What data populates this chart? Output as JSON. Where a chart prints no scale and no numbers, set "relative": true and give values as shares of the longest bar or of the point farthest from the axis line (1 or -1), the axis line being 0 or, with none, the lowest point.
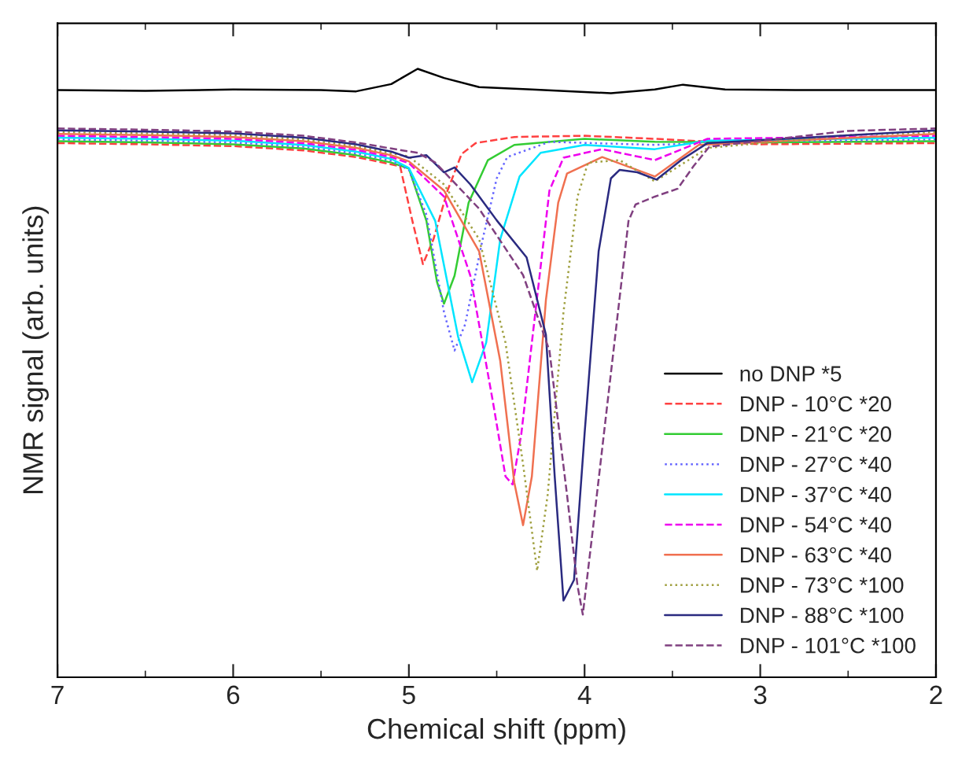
{
  "chart_data": {
    "type": "line",
    "relative": true,
    "xlabel": "Chemical shift (ppm)",
    "ylabel": "NMR signal (arb. units)",
    "xlim": [
      7,
      2
    ],
    "xticks": [
      7,
      6,
      5,
      4,
      3,
      2
    ],
    "grid": false,
    "legend": "bottom right",
    "marker": "none",
    "series": [
      {
        "name": "no DNP *5",
        "color": "#000000",
        "line_style": "solid",
        "x": [
          7,
          6.5,
          6,
          5.5,
          5.3,
          5.1,
          4.95,
          4.8,
          4.6,
          4.3,
          4.0,
          3.85,
          3.6,
          3.44,
          3.2,
          2.8,
          2.4,
          2
        ],
        "values": [
          0.965,
          0.964,
          0.966,
          0.965,
          0.963,
          0.975,
          1.0,
          0.985,
          0.97,
          0.966,
          0.962,
          0.96,
          0.966,
          0.974,
          0.966,
          0.965,
          0.965,
          0.965
        ]
      },
      {
        "name": "DNP - 10°C *20",
        "color": "#ff4040",
        "line_style": "dashed",
        "x": [
          7,
          6.5,
          6,
          5.6,
          5.3,
          5.1,
          5.05,
          4.98,
          4.92,
          4.86,
          4.78,
          4.7,
          4.62,
          4.4,
          4.0,
          3.6,
          3.0,
          2.5,
          2
        ],
        "values": [
          0.878,
          0.876,
          0.873,
          0.866,
          0.855,
          0.843,
          0.84,
          0.75,
          0.679,
          0.72,
          0.8,
          0.86,
          0.878,
          0.888,
          0.89,
          0.885,
          0.876,
          0.877,
          0.878
        ]
      },
      {
        "name": "DNP - 21°C *20",
        "color": "#33cc33",
        "line_style": "solid",
        "x": [
          7,
          6.5,
          6,
          5.6,
          5.3,
          5.1,
          5.0,
          4.9,
          4.84,
          4.8,
          4.74,
          4.66,
          4.55,
          4.4,
          4.0,
          3.6,
          3.0,
          2
        ],
        "values": [
          0.881,
          0.879,
          0.876,
          0.869,
          0.858,
          0.846,
          0.836,
          0.75,
          0.65,
          0.614,
          0.66,
          0.78,
          0.85,
          0.875,
          0.885,
          0.88,
          0.879,
          0.881
        ]
      },
      {
        "name": "DNP - 27°C *40",
        "color": "#6666ff",
        "line_style": "dotted",
        "x": [
          7,
          6.5,
          6,
          5.6,
          5.3,
          5.1,
          5.0,
          4.9,
          4.8,
          4.74,
          4.68,
          4.58,
          4.5,
          4.44,
          4.2,
          3.6,
          3.0,
          2
        ],
        "values": [
          0.884,
          0.882,
          0.879,
          0.872,
          0.861,
          0.849,
          0.834,
          0.76,
          0.6,
          0.537,
          0.58,
          0.72,
          0.82,
          0.855,
          0.88,
          0.875,
          0.881,
          0.884
        ]
      },
      {
        "name": "DNP - 37°C *40",
        "color": "#00e5ff",
        "line_style": "solid",
        "x": [
          7,
          6.5,
          6,
          5.6,
          5.3,
          5.1,
          5.0,
          4.85,
          4.72,
          4.64,
          4.56,
          4.48,
          4.37,
          4.25,
          4.0,
          3.6,
          3.3,
          2
        ],
        "values": [
          0.887,
          0.885,
          0.882,
          0.875,
          0.864,
          0.852,
          0.837,
          0.75,
          0.56,
          0.485,
          0.55,
          0.72,
          0.823,
          0.862,
          0.875,
          0.868,
          0.882,
          0.887
        ]
      },
      {
        "name": "DNP - 54°C *40",
        "color": "#ee00ee",
        "line_style": "dashed",
        "x": [
          7,
          6.5,
          6,
          5.6,
          5.3,
          5.1,
          5.0,
          4.8,
          4.65,
          4.52,
          4.45,
          4.41,
          4.36,
          4.28,
          4.2,
          4.12,
          3.9,
          3.6,
          3.3,
          2
        ],
        "values": [
          0.89,
          0.888,
          0.885,
          0.878,
          0.867,
          0.855,
          0.845,
          0.79,
          0.66,
          0.45,
          0.33,
          0.317,
          0.4,
          0.6,
          0.8,
          0.854,
          0.868,
          0.85,
          0.885,
          0.89
        ]
      },
      {
        "name": "DNP - 63°C *40",
        "color": "#f07050",
        "line_style": "solid",
        "x": [
          7,
          6.5,
          6,
          5.6,
          5.3,
          5.1,
          5.0,
          4.8,
          4.6,
          4.48,
          4.4,
          4.35,
          4.3,
          4.22,
          4.15,
          4.1,
          3.9,
          3.6,
          3.35,
          2
        ],
        "values": [
          0.893,
          0.891,
          0.888,
          0.881,
          0.87,
          0.858,
          0.848,
          0.8,
          0.7,
          0.52,
          0.32,
          0.25,
          0.33,
          0.62,
          0.78,
          0.828,
          0.855,
          0.823,
          0.875,
          0.893
        ]
      },
      {
        "name": "DNP - 73°C *100",
        "color": "#a0a040",
        "line_style": "dotted",
        "x": [
          7,
          6.5,
          6,
          5.6,
          5.3,
          5.1,
          5.0,
          4.8,
          4.6,
          4.45,
          4.35,
          4.27,
          4.21,
          4.12,
          4.04,
          3.98,
          3.8,
          3.6,
          3.3,
          2.5,
          2
        ],
        "values": [
          0.896,
          0.894,
          0.891,
          0.884,
          0.873,
          0.861,
          0.856,
          0.81,
          0.72,
          0.55,
          0.35,
          0.175,
          0.3,
          0.6,
          0.79,
          0.846,
          0.85,
          0.815,
          0.87,
          0.891,
          0.896
        ]
      },
      {
        "name": "DNP - 88°C *100",
        "color": "#2a2a80",
        "line_style": "solid",
        "x": [
          7,
          6.5,
          6,
          5.6,
          5.3,
          5.1,
          5.0,
          4.9,
          4.8,
          4.74,
          4.65,
          4.5,
          4.33,
          4.22,
          4.17,
          4.12,
          4.06,
          4.0,
          3.92,
          3.85,
          3.8,
          3.7,
          3.59,
          3.45,
          3.3,
          2
        ],
        "values": [
          0.899,
          0.897,
          0.894,
          0.887,
          0.876,
          0.864,
          0.854,
          0.858,
          0.83,
          0.838,
          0.81,
          0.751,
          0.69,
          0.563,
          0.33,
          0.126,
          0.16,
          0.4,
          0.7,
          0.82,
          0.834,
          0.83,
          0.818,
          0.85,
          0.878,
          0.899
        ]
      },
      {
        "name": "DNP - 101°C *100",
        "color": "#804080",
        "line_style": "dashed",
        "x": [
          7,
          6.5,
          6,
          5.6,
          5.3,
          5.1,
          4.95,
          4.85,
          4.6,
          4.35,
          4.2,
          4.1,
          4.04,
          4.01,
          3.95,
          3.85,
          3.75,
          3.71,
          3.6,
          3.47,
          3.38,
          3.29,
          2.5,
          2
        ],
        "values": [
          0.902,
          0.9,
          0.897,
          0.89,
          0.879,
          0.869,
          0.862,
          0.846,
          0.77,
          0.661,
          0.537,
          0.3,
          0.15,
          0.103,
          0.25,
          0.5,
          0.75,
          0.777,
          0.79,
          0.803,
          0.84,
          0.872,
          0.898,
          0.902
        ]
      }
    ]
  }
}
